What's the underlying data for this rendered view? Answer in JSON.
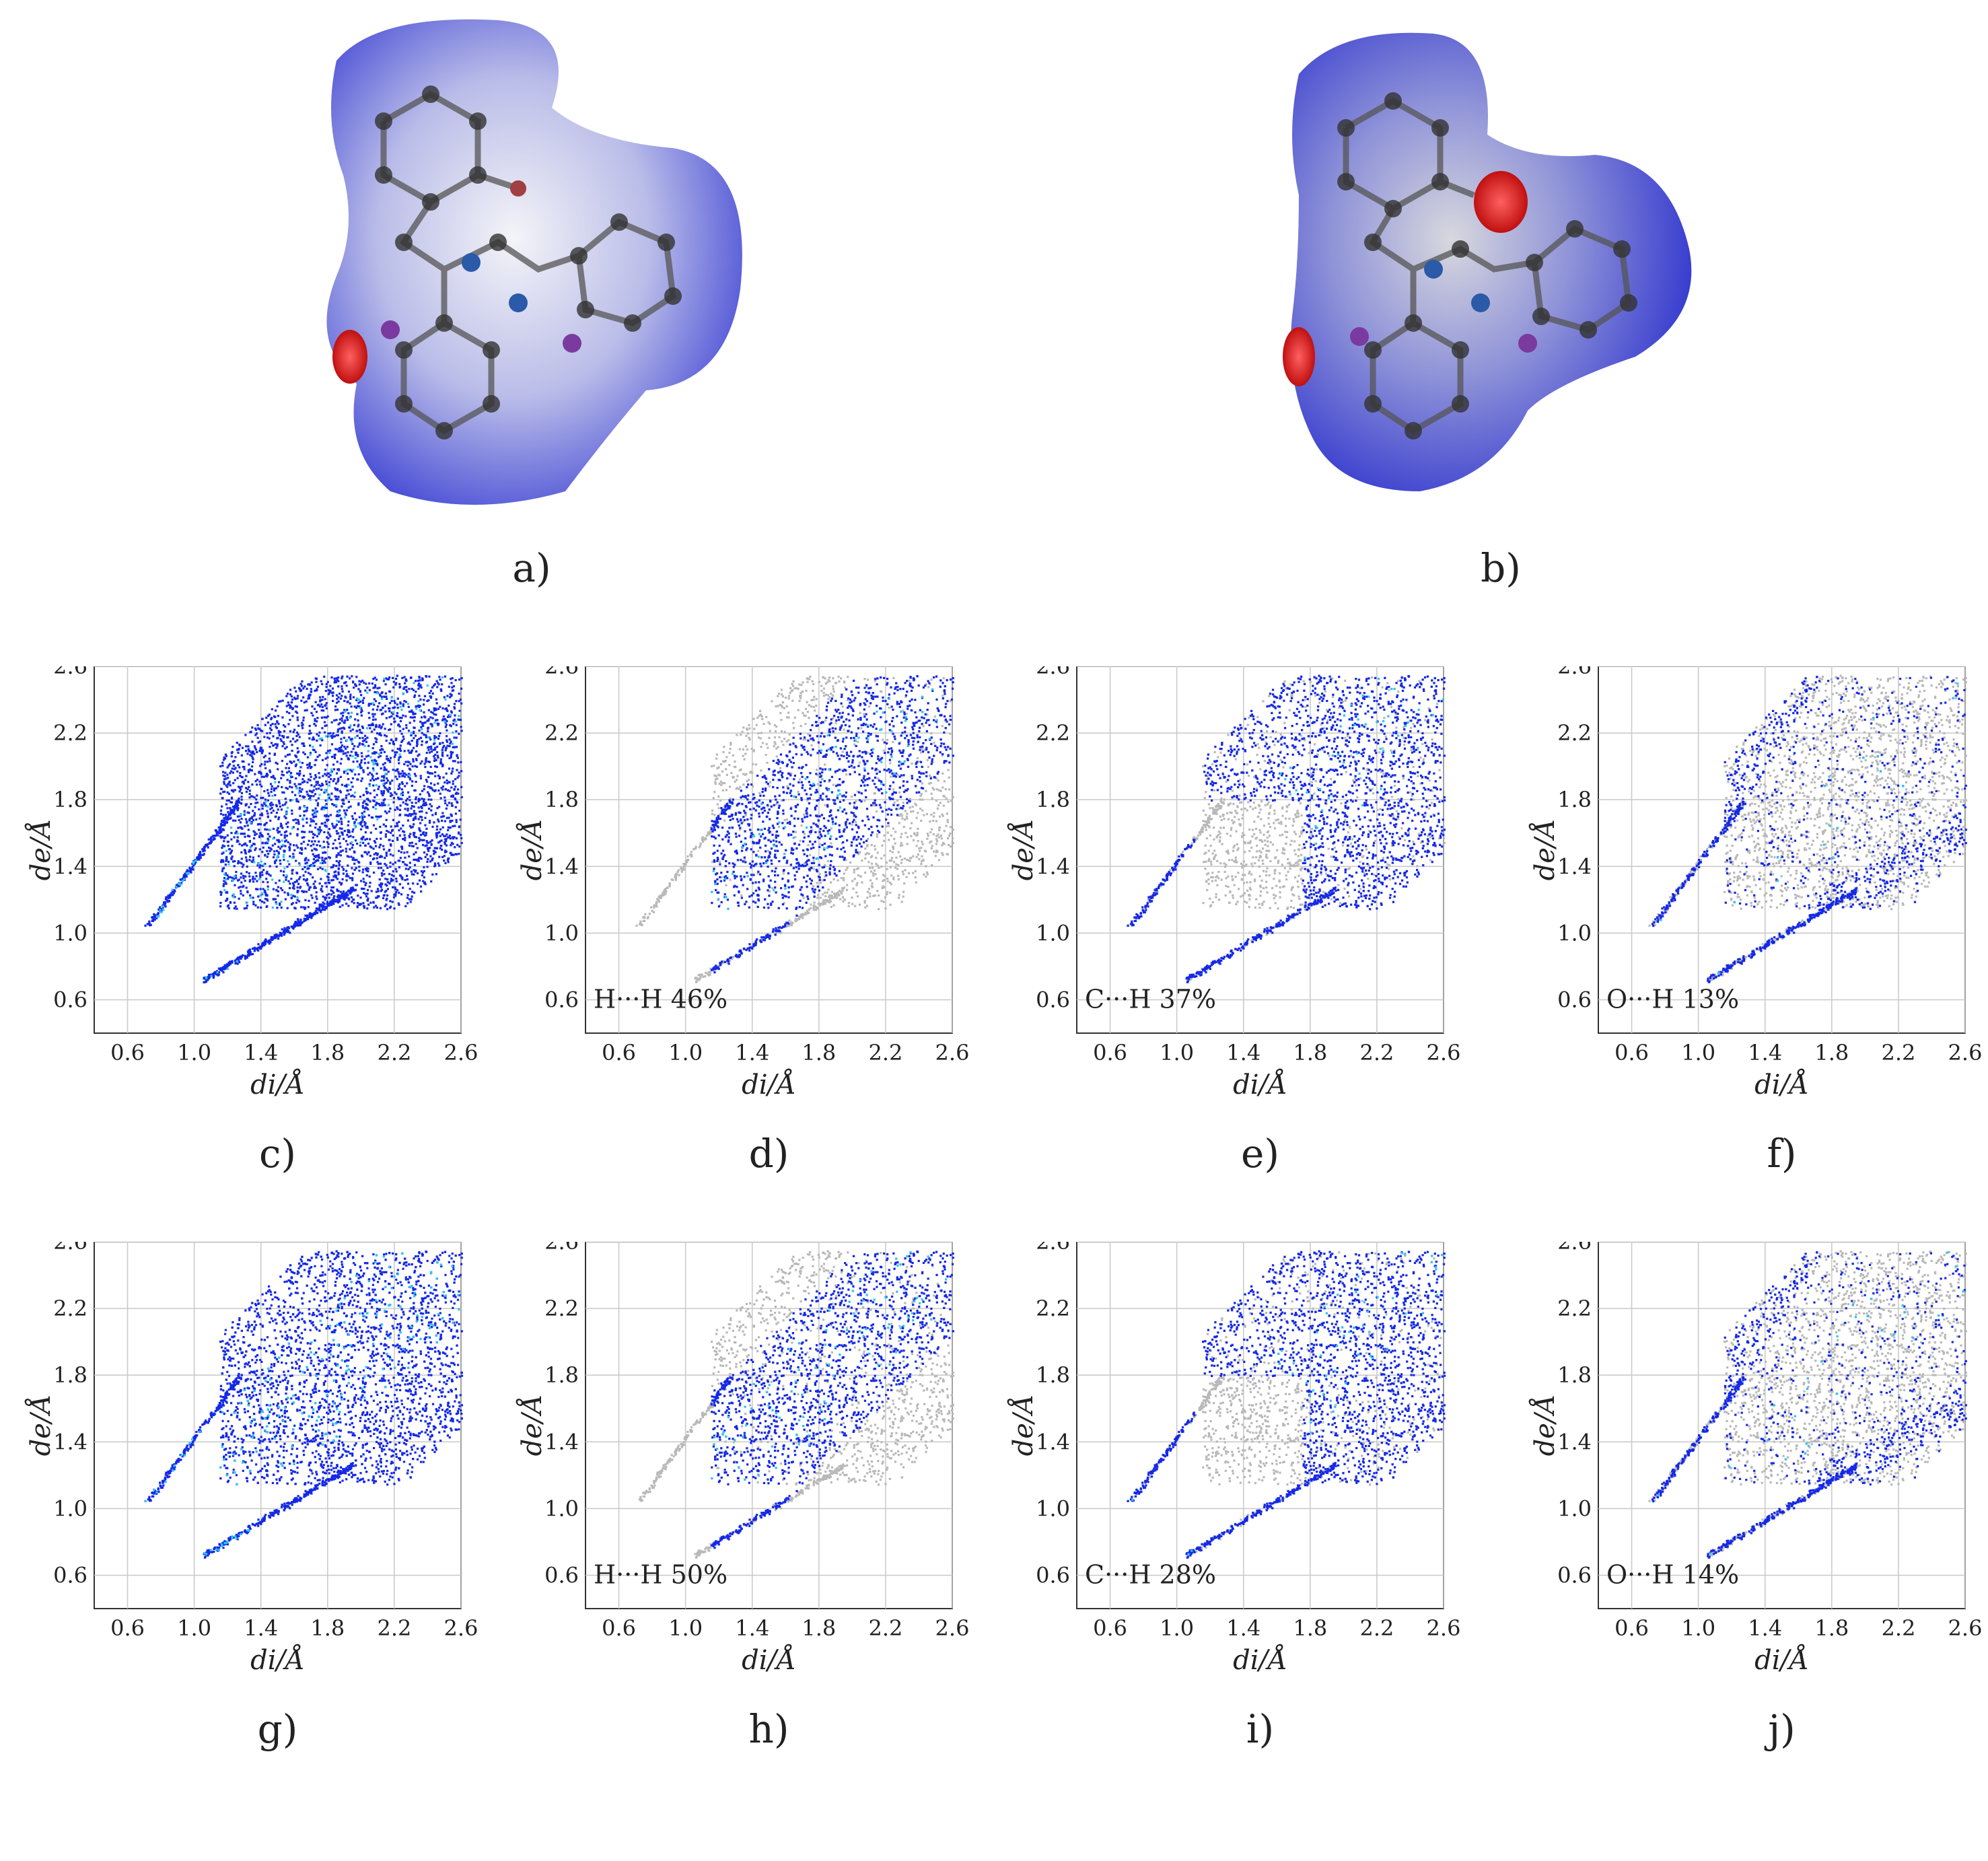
{
  "surfaces": [
    {
      "id": "a",
      "label": "a)"
    },
    {
      "id": "b",
      "label": "b)"
    }
  ],
  "axes": {
    "xlabel": "di/Å",
    "ylabel": "de/Å",
    "xlim": [
      0.4,
      2.6
    ],
    "ylim": [
      0.4,
      2.6
    ],
    "ticks": [
      "0.6",
      "1.0",
      "1.4",
      "1.8",
      "2.2",
      "2.6"
    ]
  },
  "plots": [
    {
      "id": "c",
      "label": "c)",
      "annotation": ""
    },
    {
      "id": "d",
      "label": "d)",
      "annotation": "H···H 46%"
    },
    {
      "id": "e",
      "label": "e)",
      "annotation": "C···H 37%"
    },
    {
      "id": "f",
      "label": "f)",
      "annotation": "O···H 13%"
    },
    {
      "id": "g",
      "label": "g)",
      "annotation": ""
    },
    {
      "id": "h",
      "label": "h)",
      "annotation": "H···H 50%"
    },
    {
      "id": "i",
      "label": "i)",
      "annotation": "C···H 28%"
    },
    {
      "id": "j",
      "label": "j)",
      "annotation": "O···H 14%"
    }
  ],
  "chart_data": [
    {
      "type": "scatter",
      "panel": "c",
      "xlim": [
        0.4,
        2.6
      ],
      "ylim": [
        0.4,
        2.6
      ],
      "grid": true,
      "contact": "all",
      "fraction": null
    },
    {
      "type": "scatter",
      "panel": "d",
      "xlim": [
        0.4,
        2.6
      ],
      "ylim": [
        0.4,
        2.6
      ],
      "grid": true,
      "contact": "H···H",
      "fraction": 46
    },
    {
      "type": "scatter",
      "panel": "e",
      "xlim": [
        0.4,
        2.6
      ],
      "ylim": [
        0.4,
        2.6
      ],
      "grid": true,
      "contact": "C···H",
      "fraction": 37
    },
    {
      "type": "scatter",
      "panel": "f",
      "xlim": [
        0.4,
        2.6
      ],
      "ylim": [
        0.4,
        2.6
      ],
      "grid": true,
      "contact": "O···H",
      "fraction": 13
    },
    {
      "type": "scatter",
      "panel": "g",
      "xlim": [
        0.4,
        2.6
      ],
      "ylim": [
        0.4,
        2.6
      ],
      "grid": true,
      "contact": "all",
      "fraction": null
    },
    {
      "type": "scatter",
      "panel": "h",
      "xlim": [
        0.4,
        2.6
      ],
      "ylim": [
        0.4,
        2.6
      ],
      "grid": true,
      "contact": "H···H",
      "fraction": 50
    },
    {
      "type": "scatter",
      "panel": "i",
      "xlim": [
        0.4,
        2.6
      ],
      "ylim": [
        0.4,
        2.6
      ],
      "grid": true,
      "contact": "C···H",
      "fraction": 28
    },
    {
      "type": "scatter",
      "panel": "j",
      "xlim": [
        0.4,
        2.6
      ],
      "ylim": [
        0.4,
        2.6
      ],
      "grid": true,
      "contact": "O···H",
      "fraction": 14
    }
  ],
  "colors": {
    "surface_blue": "#4a4fd6",
    "surface_white": "#f2f2f6",
    "surface_red": "#e02020",
    "fp_blue": "#1428e8",
    "fp_cyan": "#2ac8f0",
    "fp_gray": "#b8b8b8"
  }
}
